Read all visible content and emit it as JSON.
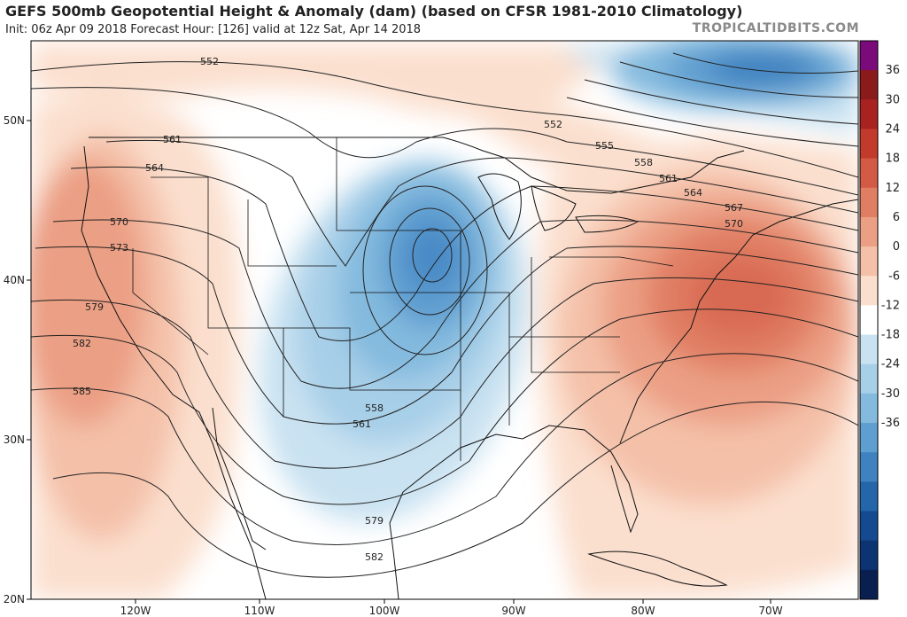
{
  "header": {
    "title": "GEFS 500mb Geopotential Height & Anomaly (dam) (based on CFSR 1981-2010 Climatology)",
    "subtitle": "Init: 06z Apr 09 2018   Forecast Hour: [126]   valid at 12z Sat, Apr 14 2018",
    "credit": "TROPICALTIDBITS.COM"
  },
  "axes": {
    "lat_labels": [
      "50N",
      "40N",
      "30N",
      "20N"
    ],
    "lon_labels": [
      "120W",
      "110W",
      "100W",
      "90W",
      "80W",
      "70W"
    ]
  },
  "contour_labels": [
    "552",
    "552",
    "555",
    "558",
    "558",
    "561",
    "561",
    "561",
    "564",
    "564",
    "567",
    "570",
    "570",
    "573",
    "579",
    "579",
    "582",
    "582",
    "585"
  ],
  "colorbar": {
    "ticks": [
      "36",
      "30",
      "24",
      "18",
      "12",
      "6",
      "0",
      "-6",
      "-12",
      "-18",
      "-24",
      "-30",
      "-36"
    ],
    "colors": [
      "#7b0a7b",
      "#8b1a1a",
      "#a82222",
      "#c23a2c",
      "#d35a44",
      "#e07e63",
      "#eb9f84",
      "#f4c0a8",
      "#fbdfce",
      "#ffffff",
      "#c9e2f1",
      "#a7cfe8",
      "#83bade",
      "#5e9ed0",
      "#3f82c0",
      "#2565aa",
      "#154a90",
      "#0c3472",
      "#081f4f"
    ]
  }
}
